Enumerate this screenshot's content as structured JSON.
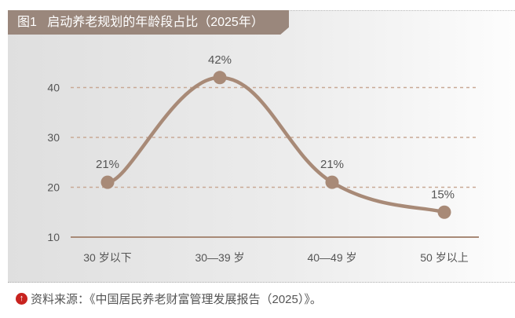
{
  "chart_data": {
    "type": "line",
    "title": "图1   启动养老规划的年龄段占比（2025年）",
    "categories": [
      "30 岁以下",
      "30—39 岁",
      "40—49 岁",
      "50 岁以上"
    ],
    "values": [
      21,
      42,
      21,
      15
    ],
    "data_labels": [
      "21%",
      "42%",
      "21%",
      "15%"
    ],
    "yticks": [
      10,
      20,
      30,
      40
    ],
    "ylim": [
      10,
      45
    ],
    "grid": "dashed horizontal",
    "line_color": "#a88a77"
  },
  "source": "资料来源：《中国居民养老财富管理发展报告（2025）》。"
}
